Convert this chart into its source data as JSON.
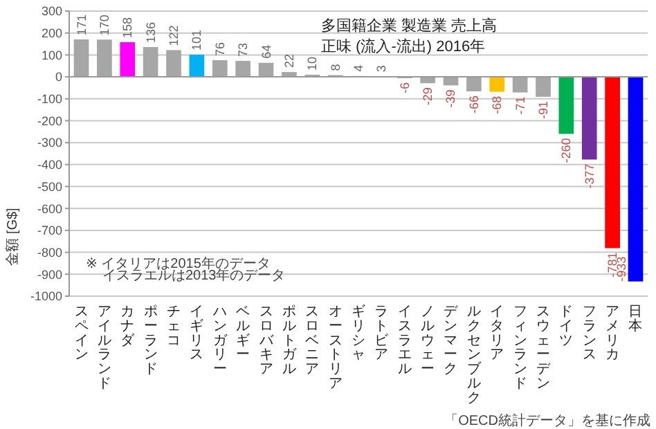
{
  "chart_data": {
    "type": "bar",
    "title": "多国籍企業 製造業 売上高",
    "subtitle": "正味 (流入-流出) 2016年",
    "ylabel": "金額 [G$]",
    "categories": [
      "スペイン",
      "アイルランド",
      "カナダ",
      "ポーランド",
      "チェコ",
      "イギリス",
      "ハンガリー",
      "ベルギー",
      "スロバキア",
      "ポルトガル",
      "スロベニア",
      "オーストリア",
      "ギリシャ",
      "ラトビア",
      "イスラエル",
      "ノルウェー",
      "デンマーク",
      "ルクセンブルク",
      "イタリア",
      "フィンランド",
      "スウェーデン",
      "ドイツ",
      "フランス",
      "アメリカ",
      "日本"
    ],
    "values": [
      171,
      170,
      158,
      136,
      122,
      101,
      76,
      73,
      64,
      22,
      10,
      8,
      4,
      3,
      -6,
      -29,
      -39,
      -66,
      -68,
      -71,
      -91,
      -260,
      -377,
      -781,
      -933
    ],
    "colors": [
      "#a6a6a6",
      "#a6a6a6",
      "#ff00ff",
      "#a6a6a6",
      "#a6a6a6",
      "#00b0f0",
      "#a6a6a6",
      "#a6a6a6",
      "#a6a6a6",
      "#a6a6a6",
      "#a6a6a6",
      "#a6a6a6",
      "#a6a6a6",
      "#a6a6a6",
      "#a6a6a6",
      "#a6a6a6",
      "#a6a6a6",
      "#a6a6a6",
      "#ffc000",
      "#a6a6a6",
      "#a6a6a6",
      "#00b050",
      "#7030a0",
      "#ff0000",
      "#0000ff"
    ],
    "ylim": [
      -1000,
      300
    ],
    "yticks": [
      -1000,
      -900,
      -800,
      -700,
      -600,
      -500,
      -400,
      -300,
      -200,
      -100,
      0,
      100,
      200,
      300
    ],
    "grid": "y",
    "data_labels": true,
    "annotations": [
      "※ イタリアは2015年のデータ",
      "イスラエルは2013年のデータ",
      "「OECD統計データ」を基に作成"
    ]
  }
}
